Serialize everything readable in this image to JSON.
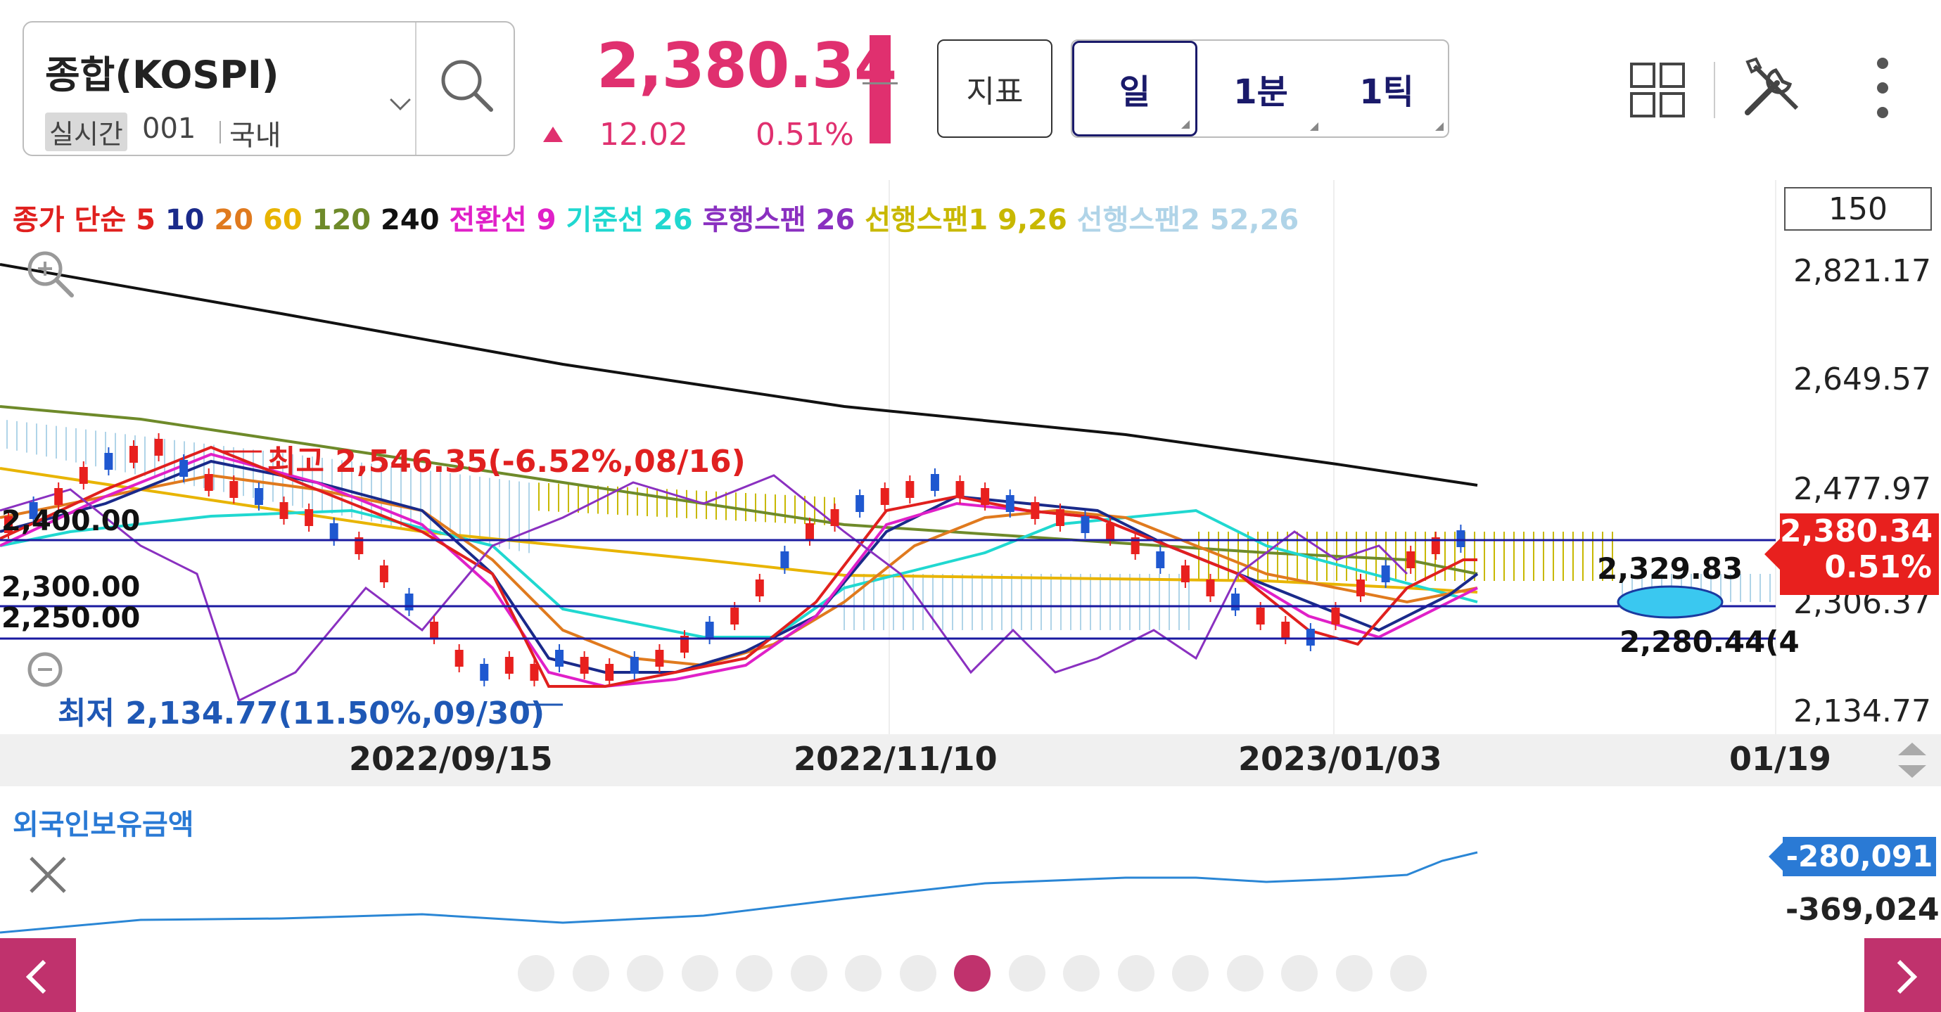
{
  "header": {
    "symbol_name": "종합(KOSPI)",
    "realtime_tag": "실시간",
    "symbol_code": "001",
    "market": "국내",
    "price": "2,380.34",
    "change": "12.02",
    "change_pct": "0.51%",
    "indicator_button": "지표",
    "period_tabs": [
      "일",
      "1분",
      "1틱"
    ],
    "active_period": "일",
    "icons": [
      "search-icon",
      "grid-layout-icon",
      "tools-icon",
      "more-vertical-icon"
    ]
  },
  "legend": [
    {
      "text": "종가 단순 ",
      "color": "#e0201e"
    },
    {
      "text": "5 ",
      "color": "#e0201e"
    },
    {
      "text": "10 ",
      "color": "#1a2a8a"
    },
    {
      "text": "20 ",
      "color": "#e07a1e"
    },
    {
      "text": "60 ",
      "color": "#e8b400"
    },
    {
      "text": "120 ",
      "color": "#6e8a2a"
    },
    {
      "text": "240 ",
      "color": "#111111"
    },
    {
      "text": "전환선 9 ",
      "color": "#e020c8"
    },
    {
      "text": "기준선 26 ",
      "color": "#20d8d0"
    },
    {
      "text": "후행스팬 26 ",
      "color": "#8a30c0"
    },
    {
      "text": "선행스팬1 9,26 ",
      "color": "#c8b800"
    },
    {
      "text": "선행스팬2 52,26",
      "color": "#b0d4e8"
    }
  ],
  "count_box": "150",
  "y_axis": [
    "2,821.17",
    "2,649.57",
    "2,477.97",
    "2,306.37",
    "2,134.77"
  ],
  "price_tag": {
    "price": "2,380.34",
    "pct": "0.51%"
  },
  "horizontal_lines": [
    "2,400.00",
    "2,300.00",
    "2,250.00"
  ],
  "annotations": {
    "high": "최고 2,546.35(-6.52%,08/16)",
    "low": "최저 2,134.77(11.50%,09/30)",
    "target_top": "2,329.83",
    "target_bottom": "2,280.44(4"
  },
  "date_axis": [
    "2022/09/15",
    "2022/11/10",
    "2023/01/03",
    "01/19"
  ],
  "sub_chart": {
    "title": "외국인보유금액",
    "current": "-280,091",
    "min": "-369,024"
  },
  "pager": {
    "total": 17,
    "active": 9
  },
  "colors": {
    "accent": "#e0306f",
    "up": "#e8201e",
    "down": "#1f58d0",
    "brand_nav": "#c0326d"
  }
}
